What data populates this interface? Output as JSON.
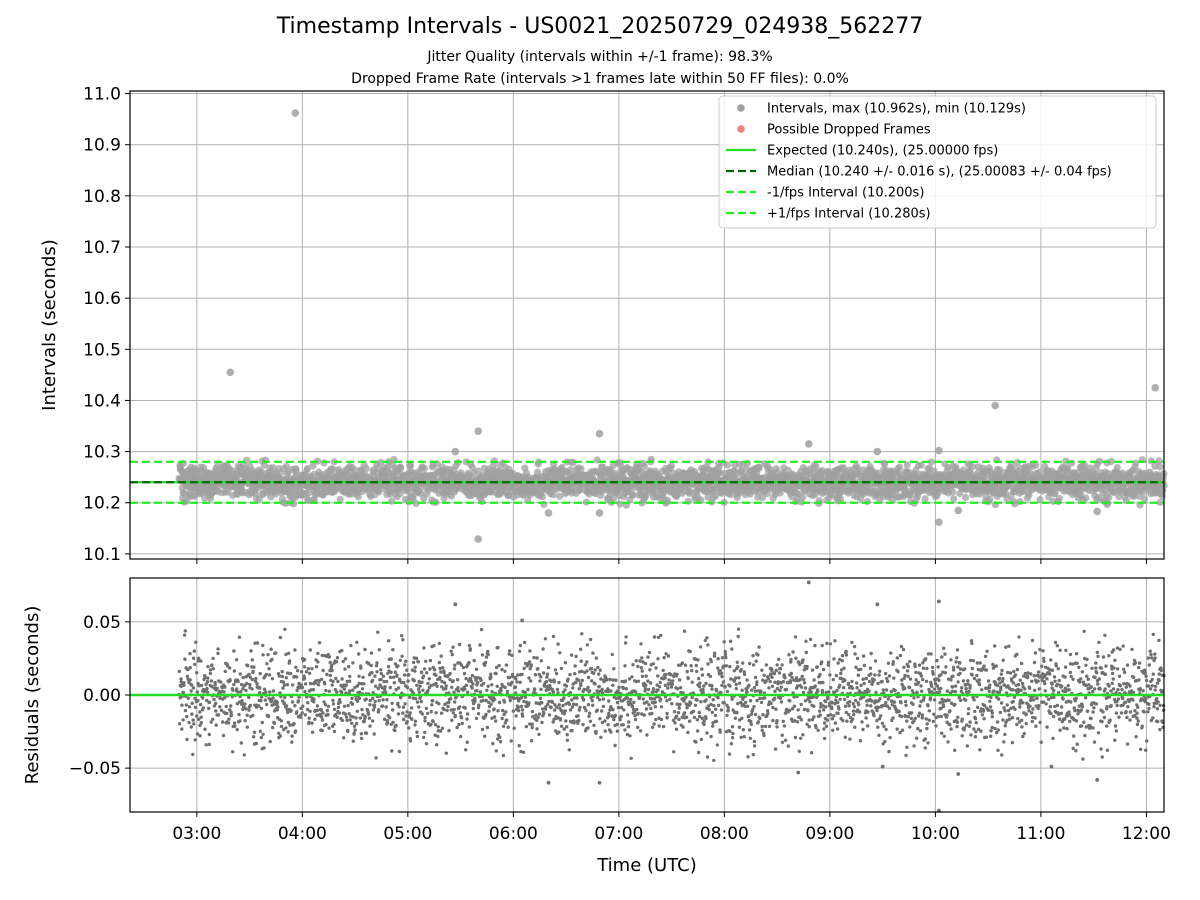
{
  "chart_data": [
    {
      "type": "scatter",
      "title": "Timestamp Intervals - US0021_20250729_024938_562277",
      "subtitle_lines": [
        "Jitter Quality (intervals within +/-1 frame): 98.3%",
        "Dropped Frame Rate (intervals >1 frames late within 50 FF files): 0.0%"
      ],
      "ylabel": "Intervals (seconds)",
      "xlabel": "",
      "ylim": [
        10.09,
        11.005
      ],
      "xlim": [
        "02:22",
        "12:10"
      ],
      "y_ticks": [
        "10.1",
        "10.2",
        "10.3",
        "10.4",
        "10.5",
        "10.6",
        "10.7",
        "10.8",
        "10.9",
        "11.0"
      ],
      "grid": true,
      "legend_position": "top-right",
      "legend": [
        {
          "label": "Intervals, max (10.962s), min (10.129s)",
          "kind": "marker",
          "color": "#a0a0a0"
        },
        {
          "label": "Possible Dropped Frames",
          "kind": "marker",
          "color": "#f08080"
        },
        {
          "label": "Expected (10.240s), (25.00000 fps)",
          "kind": "solid",
          "color": "#22dd22"
        },
        {
          "label": "Median (10.240 +/- 0.016 s), (25.00083 +/- 0.04 fps)",
          "kind": "dashed",
          "color": "#006400"
        },
        {
          "label": "-1/fps Interval (10.200s)",
          "kind": "dashed",
          "color": "#22ee22"
        },
        {
          "label": "+1/fps Interval (10.280s)",
          "kind": "dashed",
          "color": "#22ee22"
        }
      ],
      "reference_lines": {
        "expected": 10.24,
        "median": 10.24,
        "lower": 10.2,
        "upper": 10.28
      },
      "series": [
        {
          "name": "Intervals, max (10.962s), min (10.129s)",
          "color": "#a0a0a0",
          "x_start": "02:50",
          "x_end": "12:10",
          "center": 10.24,
          "spread": 0.016,
          "count": 3200,
          "outliers": [
            {
              "x": "03:56",
              "y": 10.962
            },
            {
              "x": "03:19",
              "y": 10.455
            },
            {
              "x": "05:40",
              "y": 10.34
            },
            {
              "x": "05:40",
              "y": 10.129
            },
            {
              "x": "05:27",
              "y": 10.3
            },
            {
              "x": "06:49",
              "y": 10.335
            },
            {
              "x": "06:49",
              "y": 10.18
            },
            {
              "x": "06:20",
              "y": 10.18
            },
            {
              "x": "08:48",
              "y": 10.315
            },
            {
              "x": "09:27",
              "y": 10.3
            },
            {
              "x": "10:02",
              "y": 10.302
            },
            {
              "x": "10:02",
              "y": 10.162
            },
            {
              "x": "10:34",
              "y": 10.39
            },
            {
              "x": "12:05",
              "y": 10.425
            },
            {
              "x": "11:32",
              "y": 10.183
            },
            {
              "x": "10:13",
              "y": 10.185
            }
          ]
        },
        {
          "name": "Possible Dropped Frames",
          "color": "#f08080",
          "points": []
        }
      ]
    },
    {
      "type": "scatter",
      "ylabel": "Residuals (seconds)",
      "xlabel": "Time (UTC)",
      "ylim": [
        -0.08,
        0.08
      ],
      "xlim": [
        "02:22",
        "12:10"
      ],
      "y_ticks": [
        "−0.05",
        "0.00",
        "0.05"
      ],
      "x_ticks": [
        "03:00",
        "04:00",
        "05:00",
        "06:00",
        "07:00",
        "08:00",
        "09:00",
        "10:00",
        "11:00",
        "12:00"
      ],
      "grid": true,
      "zero_line_color": "#22dd22",
      "series": [
        {
          "color": "#707070",
          "x_start": "02:50",
          "x_end": "12:10",
          "center": 0.0,
          "spread": 0.016,
          "count": 3200,
          "outliers": [
            {
              "x": "08:48",
              "y": 0.077
            },
            {
              "x": "10:02",
              "y": 0.064
            },
            {
              "x": "10:02",
              "y": -0.079
            },
            {
              "x": "05:27",
              "y": 0.062
            },
            {
              "x": "09:27",
              "y": 0.062
            },
            {
              "x": "06:05",
              "y": 0.051
            },
            {
              "x": "06:20",
              "y": -0.06
            },
            {
              "x": "06:49",
              "y": -0.06
            },
            {
              "x": "08:42",
              "y": -0.053
            },
            {
              "x": "10:13",
              "y": -0.054
            },
            {
              "x": "11:32",
              "y": -0.058
            },
            {
              "x": "11:06",
              "y": -0.049
            },
            {
              "x": "09:30",
              "y": -0.049
            }
          ]
        }
      ]
    }
  ]
}
